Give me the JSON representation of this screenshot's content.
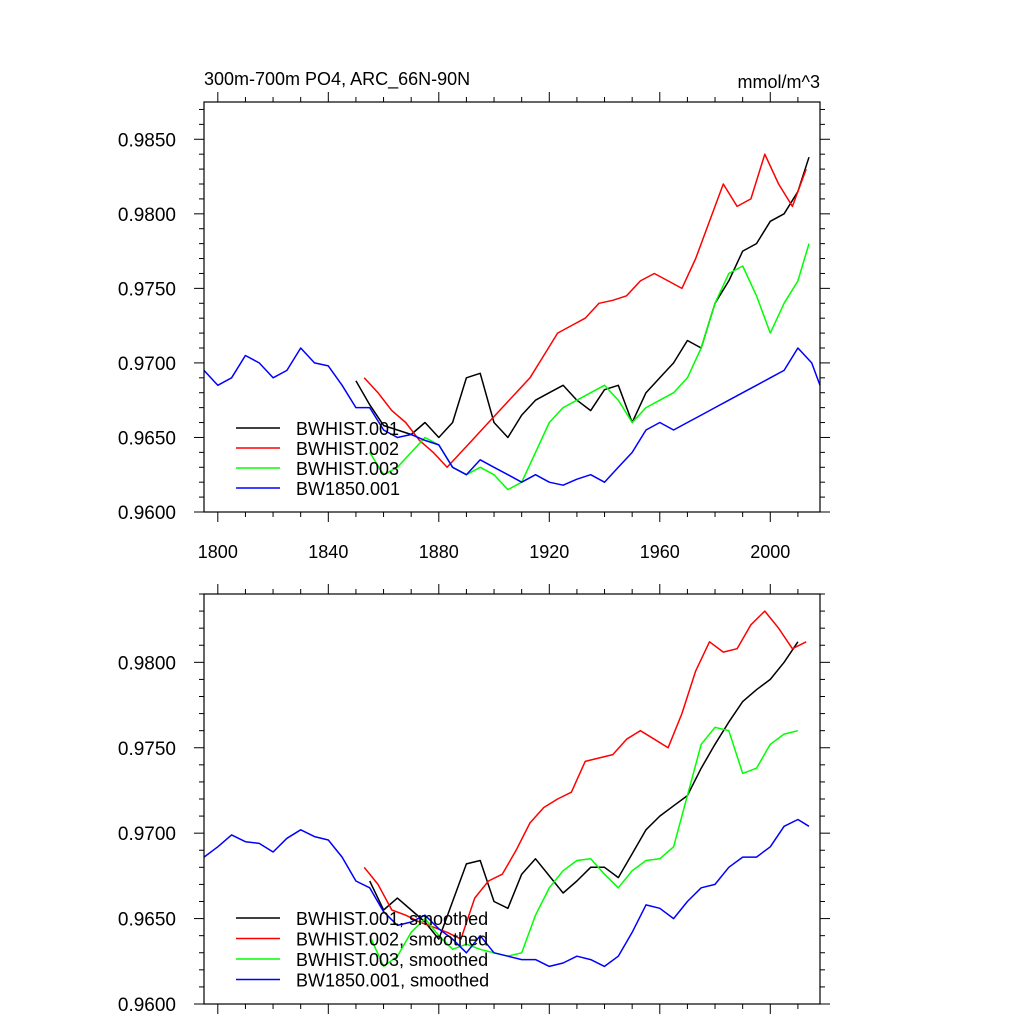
{
  "chart_data": [
    {
      "type": "line",
      "title": "300m-700m PO4, ARC_66N-90N",
      "units": "mmol/m^3",
      "xlim": [
        1795,
        2018
      ],
      "ylim": [
        0.96,
        0.9875
      ],
      "x_ticks": [
        1800,
        1840,
        1880,
        1920,
        1960,
        2000
      ],
      "x_tick_labels": [
        "1800",
        "1840",
        "1880",
        "1920",
        "1960",
        "2000"
      ],
      "y_ticks": [
        0.96,
        0.965,
        0.97,
        0.975,
        0.98,
        0.985
      ],
      "y_tick_labels": [
        "0.9600",
        "0.9650",
        "0.9700",
        "0.9750",
        "0.9800",
        "0.9850"
      ],
      "legend_position": "bottom-left",
      "series": [
        {
          "name": "BWHIST.001",
          "color": "#000000",
          "x": [
            1850,
            1855,
            1860,
            1865,
            1870,
            1875,
            1880,
            1885,
            1890,
            1895,
            1900,
            1905,
            1910,
            1915,
            1920,
            1925,
            1930,
            1935,
            1940,
            1945,
            1950,
            1955,
            1960,
            1965,
            1970,
            1975,
            1980,
            1985,
            1990,
            1995,
            2000,
            2005,
            2010,
            2014
          ],
          "y": [
            0.9688,
            0.9672,
            0.9658,
            0.9655,
            0.9652,
            0.966,
            0.965,
            0.966,
            0.969,
            0.9693,
            0.966,
            0.965,
            0.9665,
            0.9675,
            0.968,
            0.9685,
            0.9675,
            0.9668,
            0.9682,
            0.9685,
            0.966,
            0.968,
            0.969,
            0.97,
            0.9715,
            0.971,
            0.974,
            0.9755,
            0.9775,
            0.978,
            0.9795,
            0.98,
            0.9815,
            0.9838
          ]
        },
        {
          "name": "BWHIST.002",
          "color": "#ff0000",
          "x": [
            1853,
            1858,
            1863,
            1868,
            1873,
            1878,
            1883,
            1888,
            1893,
            1898,
            1903,
            1908,
            1913,
            1918,
            1923,
            1928,
            1933,
            1938,
            1943,
            1948,
            1953,
            1958,
            1963,
            1968,
            1973,
            1978,
            1983,
            1988,
            1993,
            1998,
            2003,
            2008,
            2013
          ],
          "y": [
            0.969,
            0.968,
            0.9668,
            0.966,
            0.9648,
            0.964,
            0.963,
            0.964,
            0.965,
            0.966,
            0.967,
            0.968,
            0.969,
            0.9705,
            0.972,
            0.9725,
            0.973,
            0.974,
            0.9742,
            0.9745,
            0.9755,
            0.976,
            0.9755,
            0.975,
            0.977,
            0.9795,
            0.982,
            0.9805,
            0.981,
            0.984,
            0.982,
            0.9805,
            0.983
          ]
        },
        {
          "name": "BWHIST.003",
          "color": "#00ff00",
          "x": [
            1855,
            1860,
            1865,
            1870,
            1875,
            1880,
            1885,
            1890,
            1895,
            1900,
            1905,
            1910,
            1915,
            1920,
            1925,
            1930,
            1935,
            1940,
            1945,
            1950,
            1955,
            1960,
            1965,
            1970,
            1975,
            1980,
            1985,
            1990,
            1995,
            2000,
            2005,
            2010,
            2014
          ],
          "y": [
            0.964,
            0.9625,
            0.963,
            0.964,
            0.965,
            0.9645,
            0.963,
            0.9625,
            0.963,
            0.9625,
            0.9615,
            0.962,
            0.964,
            0.966,
            0.967,
            0.9675,
            0.968,
            0.9685,
            0.9675,
            0.966,
            0.967,
            0.9675,
            0.968,
            0.969,
            0.971,
            0.974,
            0.976,
            0.9765,
            0.9745,
            0.972,
            0.974,
            0.9755,
            0.978
          ]
        },
        {
          "name": "BW1850.001",
          "color": "#0000ff",
          "x": [
            1795,
            1800,
            1805,
            1810,
            1815,
            1820,
            1825,
            1830,
            1835,
            1840,
            1845,
            1850,
            1855,
            1860,
            1865,
            1870,
            1875,
            1880,
            1885,
            1890,
            1895,
            1900,
            1905,
            1910,
            1915,
            1920,
            1925,
            1930,
            1935,
            1940,
            1945,
            1950,
            1955,
            1960,
            1965,
            1970,
            1975,
            1980,
            1985,
            1990,
            1995,
            2000,
            2005,
            2010,
            2015,
            2018
          ],
          "y": [
            0.9695,
            0.9685,
            0.969,
            0.9705,
            0.97,
            0.969,
            0.9695,
            0.971,
            0.97,
            0.9698,
            0.9685,
            0.967,
            0.967,
            0.9655,
            0.965,
            0.9652,
            0.9648,
            0.9645,
            0.963,
            0.9625,
            0.9635,
            0.963,
            0.9625,
            0.962,
            0.9625,
            0.962,
            0.9618,
            0.9622,
            0.9625,
            0.962,
            0.963,
            0.964,
            0.9655,
            0.966,
            0.9655,
            0.966,
            0.9665,
            0.967,
            0.9675,
            0.968,
            0.9685,
            0.969,
            0.9695,
            0.971,
            0.97,
            0.9685
          ]
        }
      ]
    },
    {
      "type": "line",
      "xlim": [
        1795,
        2018
      ],
      "ylim": [
        0.96,
        0.984
      ],
      "x_ticks": [
        1800,
        1840,
        1880,
        1920,
        1960,
        2000
      ],
      "y_ticks": [
        0.96,
        0.965,
        0.97,
        0.975,
        0.98
      ],
      "y_tick_labels": [
        "0.9600",
        "0.9650",
        "0.9700",
        "0.9750",
        "0.9800"
      ],
      "legend_position": "bottom-left",
      "series": [
        {
          "name": "BWHIST.001, smoothed",
          "color": "#000000",
          "x": [
            1855,
            1860,
            1865,
            1870,
            1875,
            1880,
            1885,
            1890,
            1895,
            1900,
            1905,
            1910,
            1915,
            1920,
            1925,
            1930,
            1935,
            1940,
            1945,
            1950,
            1955,
            1960,
            1965,
            1970,
            1975,
            1980,
            1985,
            1990,
            1995,
            2000,
            2005,
            2010
          ],
          "y": [
            0.9672,
            0.9655,
            0.9662,
            0.9655,
            0.9648,
            0.9638,
            0.966,
            0.9682,
            0.9684,
            0.966,
            0.9656,
            0.9676,
            0.9685,
            0.9675,
            0.9665,
            0.9672,
            0.968,
            0.968,
            0.9674,
            0.9688,
            0.9702,
            0.971,
            0.9716,
            0.9722,
            0.9738,
            0.9752,
            0.9765,
            0.9777,
            0.9784,
            0.979,
            0.98,
            0.9812
          ]
        },
        {
          "name": "BWHIST.002, smoothed",
          "color": "#ff0000",
          "x": [
            1853,
            1858,
            1863,
            1868,
            1873,
            1878,
            1883,
            1888,
            1893,
            1898,
            1903,
            1908,
            1913,
            1918,
            1923,
            1928,
            1933,
            1938,
            1943,
            1948,
            1953,
            1958,
            1963,
            1968,
            1973,
            1978,
            1983,
            1988,
            1993,
            1998,
            2003,
            2008,
            2013
          ],
          "y": [
            0.968,
            0.967,
            0.9655,
            0.9652,
            0.9648,
            0.9645,
            0.9642,
            0.9638,
            0.9662,
            0.9672,
            0.9676,
            0.969,
            0.9706,
            0.9715,
            0.972,
            0.9724,
            0.9742,
            0.9744,
            0.9746,
            0.9755,
            0.976,
            0.9755,
            0.975,
            0.977,
            0.9795,
            0.9812,
            0.9806,
            0.9808,
            0.9822,
            0.983,
            0.982,
            0.9808,
            0.9812
          ]
        },
        {
          "name": "BWHIST.003, smoothed",
          "color": "#00ff00",
          "x": [
            1855,
            1860,
            1865,
            1870,
            1875,
            1880,
            1885,
            1890,
            1895,
            1900,
            1905,
            1910,
            1915,
            1920,
            1925,
            1930,
            1935,
            1940,
            1945,
            1950,
            1955,
            1960,
            1965,
            1970,
            1975,
            1980,
            1985,
            1990,
            1995,
            2000,
            2005,
            2010
          ],
          "y": [
            0.964,
            0.9622,
            0.9628,
            0.9642,
            0.965,
            0.964,
            0.9632,
            0.9635,
            0.9632,
            0.963,
            0.9628,
            0.963,
            0.9652,
            0.9668,
            0.9678,
            0.9684,
            0.9685,
            0.9676,
            0.9668,
            0.9678,
            0.9684,
            0.9685,
            0.9692,
            0.9722,
            0.9752,
            0.9762,
            0.976,
            0.9735,
            0.9738,
            0.9752,
            0.9758,
            0.976
          ]
        },
        {
          "name": "BW1850.001, smoothed",
          "color": "#0000ff",
          "x": [
            1795,
            1800,
            1805,
            1810,
            1815,
            1820,
            1825,
            1830,
            1835,
            1840,
            1845,
            1850,
            1855,
            1860,
            1865,
            1870,
            1875,
            1880,
            1885,
            1890,
            1895,
            1900,
            1905,
            1910,
            1915,
            1920,
            1925,
            1930,
            1935,
            1940,
            1945,
            1950,
            1955,
            1960,
            1965,
            1970,
            1975,
            1980,
            1985,
            1990,
            1995,
            2000,
            2005,
            2010,
            2014
          ],
          "y": [
            0.9686,
            0.9692,
            0.9699,
            0.9695,
            0.9694,
            0.9689,
            0.9697,
            0.9702,
            0.9698,
            0.9696,
            0.9686,
            0.9672,
            0.9668,
            0.9654,
            0.9646,
            0.9648,
            0.9652,
            0.9644,
            0.9638,
            0.963,
            0.964,
            0.963,
            0.9628,
            0.9626,
            0.9626,
            0.9622,
            0.9624,
            0.9628,
            0.9626,
            0.9622,
            0.9628,
            0.9642,
            0.9658,
            0.9656,
            0.965,
            0.966,
            0.9668,
            0.967,
            0.968,
            0.9686,
            0.9686,
            0.9692,
            0.9704,
            0.9708,
            0.9704
          ]
        }
      ]
    }
  ]
}
